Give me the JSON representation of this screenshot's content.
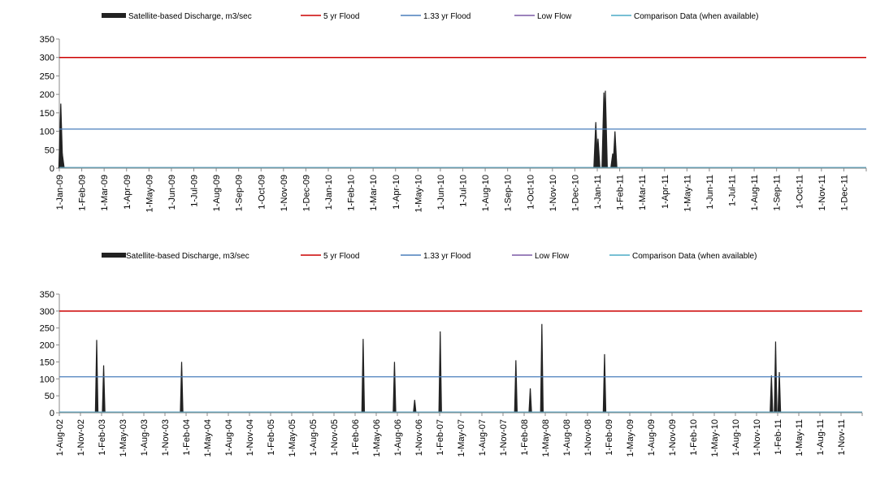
{
  "legend": {
    "discharge": "Satellite-based Discharge, m3/sec",
    "flood5": "5 yr Flood",
    "flood133": "1.33 yr Flood",
    "lowflow": "Low Flow",
    "comparison": "Comparison Data (when available)"
  },
  "colors": {
    "discharge": "#222222",
    "flood5": "#cc0000",
    "flood133": "#4a7ebb",
    "lowflow": "#7b5aa6",
    "comparison": "#4bacc6",
    "axis": "#888888"
  },
  "chart_data": [
    {
      "type": "area",
      "ylim": [
        0,
        350
      ],
      "yticks": [
        "0",
        "50",
        "100",
        "150",
        "200",
        "250",
        "300",
        "350"
      ],
      "flood5": 300,
      "flood133": 106,
      "lowflow": 2,
      "x_tick_labels": [
        "1-Jan-09",
        "1-Feb-09",
        "1-Mar-09",
        "1-Apr-09",
        "1-May-09",
        "1-Jun-09",
        "1-Jul-09",
        "1-Aug-09",
        "1-Sep-09",
        "1-Oct-09",
        "1-Nov-09",
        "1-Dec-09",
        "1-Jan-10",
        "1-Feb-10",
        "1-Mar-10",
        "1-Apr-10",
        "1-May-10",
        "1-Jun-10",
        "1-Jul-10",
        "1-Aug-10",
        "1-Sep-10",
        "1-Oct-10",
        "1-Nov-10",
        "1-Dec-10",
        "1-Jan-11",
        "1-Feb-11",
        "1-Mar-11",
        "1-Apr-11",
        "1-May-11",
        "1-Jun-11",
        "1-Jul-11",
        "1-Aug-11",
        "1-Sep-11",
        "1-Oct-11",
        "1-Nov-11",
        "1-Dec-11"
      ],
      "x_start": "2009-01-01",
      "x_end": "2012-01-01",
      "discharge_peaks": [
        {
          "date": "2009-01-03",
          "value": 175
        },
        {
          "date": "2009-01-05",
          "value": 40
        },
        {
          "date": "2010-12-30",
          "value": 125
        },
        {
          "date": "2011-01-02",
          "value": 80
        },
        {
          "date": "2011-01-10",
          "value": 205
        },
        {
          "date": "2011-01-12",
          "value": 210
        },
        {
          "date": "2011-01-22",
          "value": 40
        },
        {
          "date": "2011-01-25",
          "value": 100
        }
      ]
    },
    {
      "type": "area",
      "ylim": [
        0,
        350
      ],
      "yticks": [
        "0",
        "50",
        "100",
        "150",
        "200",
        "250",
        "300",
        "350"
      ],
      "flood5": 300,
      "flood133": 106,
      "lowflow": 2,
      "x_tick_labels": [
        "1-Aug-02",
        "1-Nov-02",
        "1-Feb-03",
        "1-May-03",
        "1-Aug-03",
        "1-Nov-03",
        "1-Feb-04",
        "1-May-04",
        "1-Aug-04",
        "1-Nov-04",
        "1-Feb-05",
        "1-May-05",
        "1-Aug-05",
        "1-Nov-05",
        "1-Feb-06",
        "1-May-06",
        "1-Aug-06",
        "1-Nov-06",
        "1-Feb-07",
        "1-May-07",
        "1-Aug-07",
        "1-Nov-07",
        "1-Feb-08",
        "1-May-08",
        "1-Aug-08",
        "1-Nov-08",
        "1-Feb-09",
        "1-May-09",
        "1-Aug-09",
        "1-Nov-09",
        "1-Feb-10",
        "1-May-10",
        "1-Aug-10",
        "1-Nov-10",
        "1-Feb-11",
        "1-May-11",
        "1-Aug-11",
        "1-Nov-11"
      ],
      "x_start": "2002-08-01",
      "x_end": "2012-01-20",
      "discharge_peaks": [
        {
          "date": "2003-01-09",
          "value": 215
        },
        {
          "date": "2003-02-08",
          "value": 140
        },
        {
          "date": "2004-01-10",
          "value": 150
        },
        {
          "date": "2006-03-02",
          "value": 218
        },
        {
          "date": "2006-07-15",
          "value": 150
        },
        {
          "date": "2006-10-10",
          "value": 38
        },
        {
          "date": "2007-01-28",
          "value": 240
        },
        {
          "date": "2007-12-20",
          "value": 155
        },
        {
          "date": "2008-02-20",
          "value": 72
        },
        {
          "date": "2008-04-10",
          "value": 262
        },
        {
          "date": "2009-01-05",
          "value": 173
        },
        {
          "date": "2010-12-25",
          "value": 110
        },
        {
          "date": "2011-01-12",
          "value": 210
        },
        {
          "date": "2011-01-28",
          "value": 120
        }
      ]
    }
  ]
}
